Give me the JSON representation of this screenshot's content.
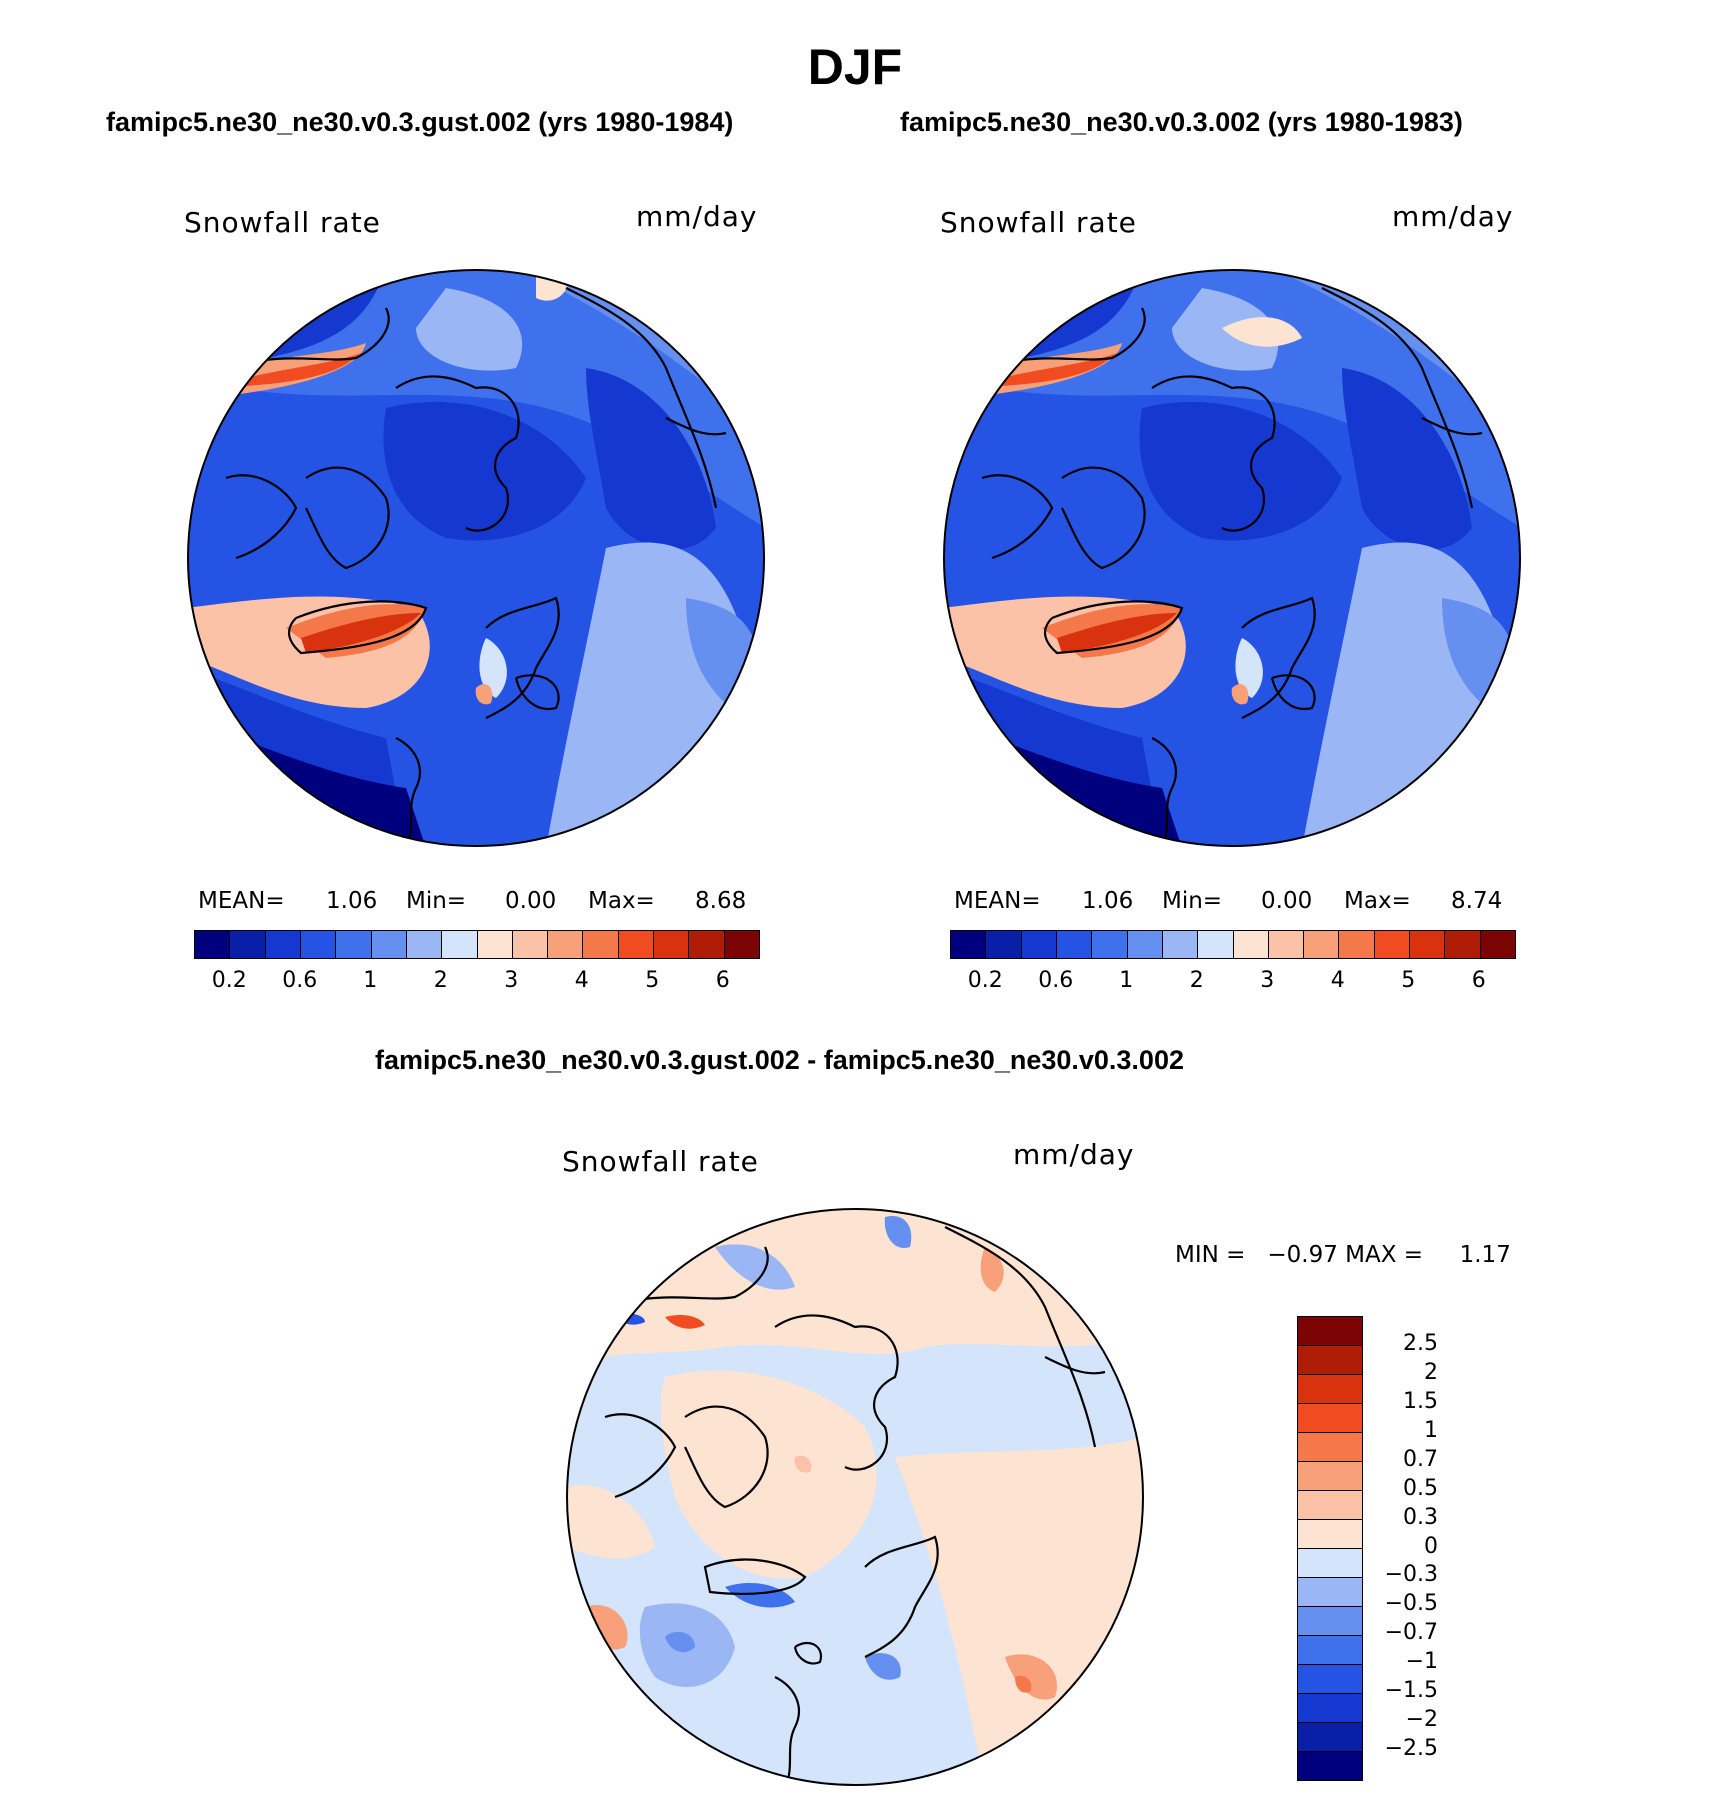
{
  "figure": {
    "season_title": "DJF"
  },
  "panels": [
    {
      "case_title": "famipc5.ne30_ne30.v0.3.gust.002 (yrs 1980-1984)",
      "variable_label": "Snowfall rate",
      "units_label": "mm/day",
      "stats": {
        "mean_label": "MEAN=",
        "mean_value": "1.06",
        "min_label": "Min=",
        "min_value": "0.00",
        "max_label": "Max=",
        "max_value": "8.68"
      }
    },
    {
      "case_title": "famipc5.ne30_ne30.v0.3.002 (yrs 1980-1983)",
      "variable_label": "Snowfall rate",
      "units_label": "mm/day",
      "stats": {
        "mean_label": "MEAN=",
        "mean_value": "1.06",
        "min_label": "Min=",
        "min_value": "0.00",
        "max_label": "Max=",
        "max_value": "8.74"
      }
    }
  ],
  "difference_panel": {
    "title": "famipc5.ne30_ne30.v0.3.gust.002 - famipc5.ne30_ne30.v0.3.002",
    "variable_label": "Snowfall rate",
    "units_label": "mm/day",
    "minmax_text": "MIN =   −0.97 MAX =     1.17"
  },
  "colorbars": {
    "field_colors": [
      "#00007f",
      "#0a1fa8",
      "#1539d0",
      "#2554e4",
      "#3f71ec",
      "#6690f0",
      "#9bb6f4",
      "#d3e4fb",
      "#fde3d2",
      "#fbc2a8",
      "#f8a07a",
      "#f5784a",
      "#f14b21",
      "#d9320f",
      "#b01d07",
      "#7d0404"
    ],
    "field_tick_labels": [
      "0.2",
      "0.6",
      "1",
      "2",
      "3",
      "4",
      "5",
      "6"
    ],
    "diff_colors_top_to_bottom": [
      "#7d0404",
      "#b01d07",
      "#d9320f",
      "#f14b21",
      "#f5784a",
      "#f8a07a",
      "#fbc2a8",
      "#fde3d2",
      "#d3e4fb",
      "#9bb6f4",
      "#6690f0",
      "#3f71ec",
      "#2554e4",
      "#1539d0",
      "#0a1fa8",
      "#00007f"
    ],
    "diff_tick_labels_top_to_bottom": [
      "2.5",
      "2",
      "1.5",
      "1",
      "0.7",
      "0.5",
      "0.3",
      "0",
      "−0.3",
      "−0.5",
      "−0.7",
      "−1",
      "−1.5",
      "−2",
      "−2.5"
    ]
  }
}
